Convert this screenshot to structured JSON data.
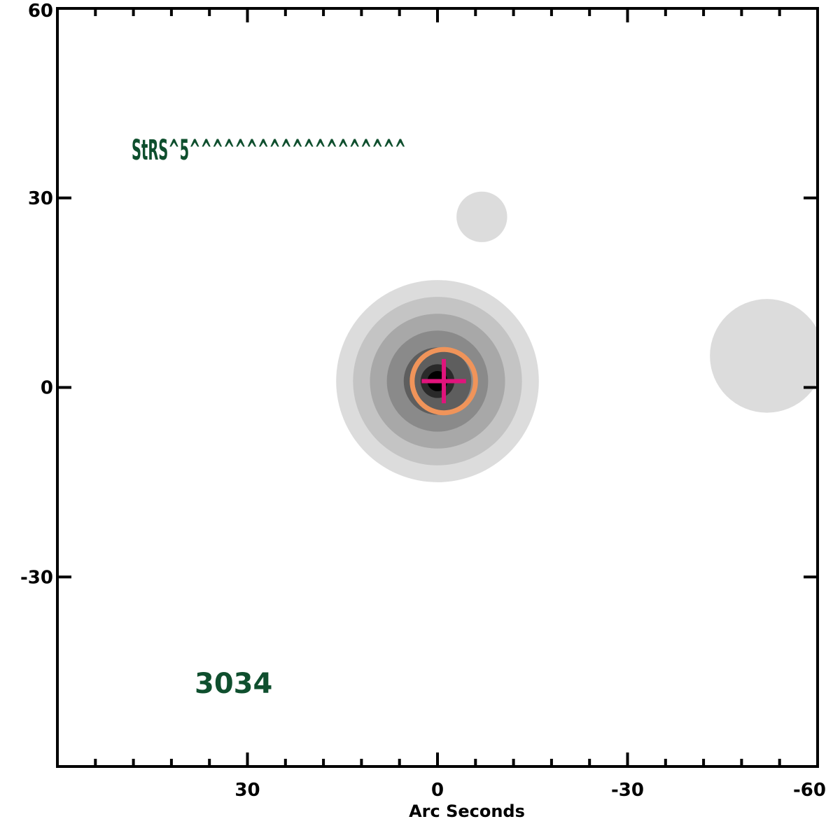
{
  "chart_data": {
    "type": "heatmap",
    "title": "",
    "xlabel": "Arc Seconds",
    "ylabel": "",
    "xlim": [
      60,
      -60
    ],
    "ylim": [
      -60,
      60
    ],
    "x_major_ticks": [
      30,
      0,
      -30,
      -60
    ],
    "x_tick_labels": [
      "30",
      "0",
      "-30",
      "-60"
    ],
    "y_major_ticks": [
      60,
      30,
      0,
      -30
    ],
    "y_tick_labels": [
      "60",
      "30",
      "0",
      "-30"
    ],
    "minor_tick_step": 6,
    "sources": [
      {
        "x": 0,
        "y": 1,
        "radius": 16,
        "levels": 6
      },
      {
        "x": -7,
        "y": 27,
        "radius": 4,
        "levels": 1
      },
      {
        "x": -52,
        "y": 5,
        "radius": 9,
        "levels": 1
      }
    ],
    "aperture": {
      "x": -1,
      "y": 1,
      "radius": 5,
      "color": "#f0945a"
    },
    "crosshair": {
      "x": -1,
      "y": 1,
      "size": 3.5,
      "color": "#e0147c"
    },
    "annotations": {
      "label_top": "StRS^5^^^^^^^^^^^^^^^^^^^",
      "label_bottom": "3034",
      "color": "#0f4f2e"
    }
  }
}
